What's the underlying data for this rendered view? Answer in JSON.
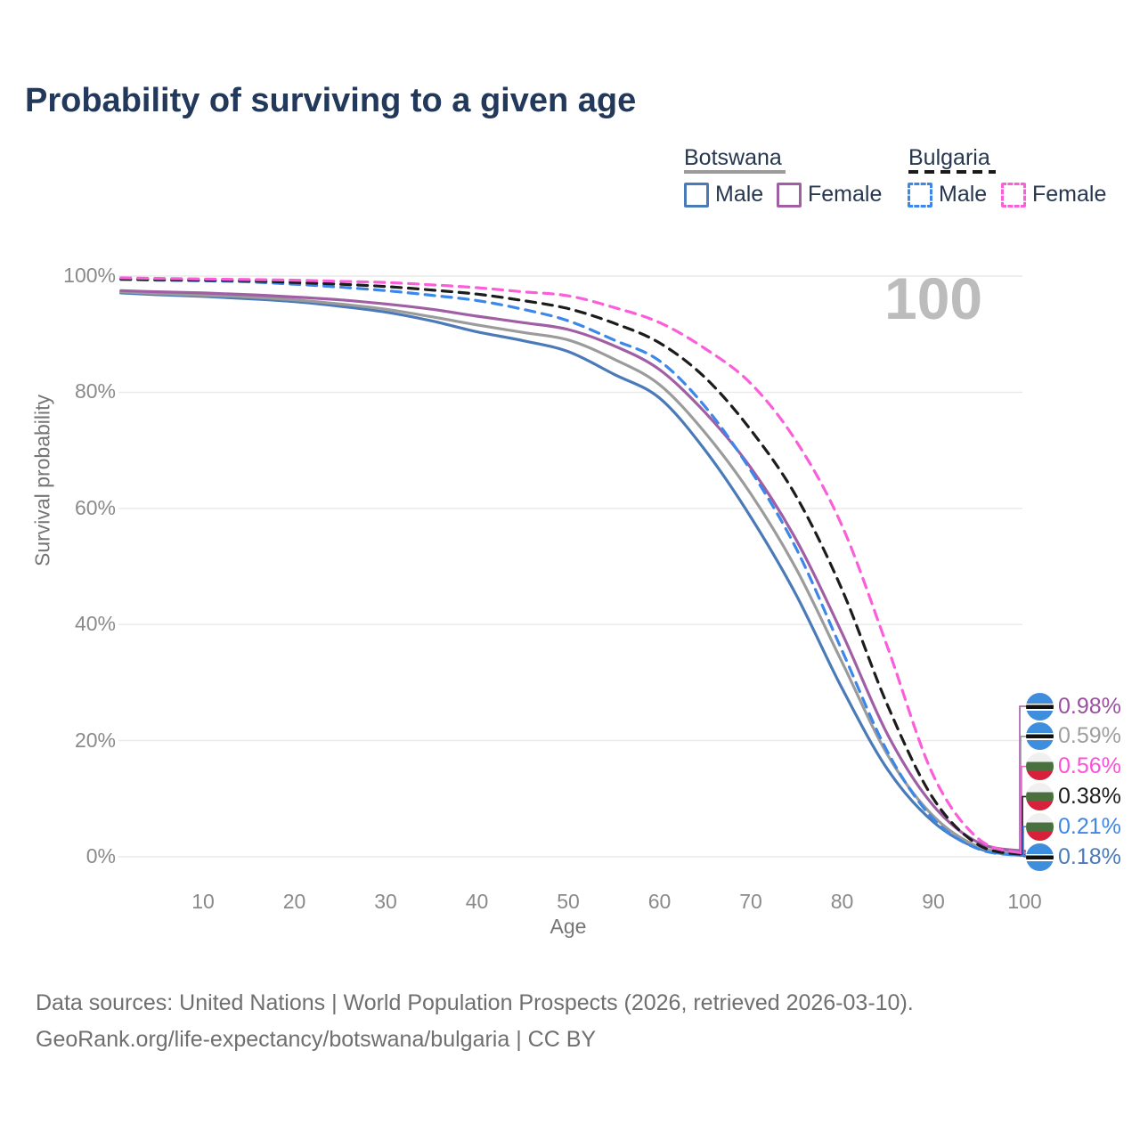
{
  "title": "Probability of surviving to a given age",
  "watermark": "100",
  "legend": {
    "botswana": {
      "title": "Botswana",
      "male_label": "Male",
      "female_label": "Female"
    },
    "bulgaria": {
      "title": "Bulgaria",
      "male_label": "Male",
      "female_label": "Female"
    }
  },
  "axes": {
    "xlabel": "Age",
    "ylabel": "Survival probability",
    "xticks": [
      {
        "value": 10,
        "label": "10"
      },
      {
        "value": 20,
        "label": "20"
      },
      {
        "value": 30,
        "label": "30"
      },
      {
        "value": 40,
        "label": "40"
      },
      {
        "value": 50,
        "label": "50"
      },
      {
        "value": 60,
        "label": "60"
      },
      {
        "value": 70,
        "label": "70"
      },
      {
        "value": 80,
        "label": "80"
      },
      {
        "value": 90,
        "label": "90"
      },
      {
        "value": 100,
        "label": "100"
      }
    ],
    "yticks": [
      {
        "value": 0,
        "label": "0%"
      },
      {
        "value": 20,
        "label": "20%"
      },
      {
        "value": 40,
        "label": "40%"
      },
      {
        "value": 60,
        "label": "60%"
      },
      {
        "value": 80,
        "label": "80%"
      },
      {
        "value": 100,
        "label": "100%"
      }
    ]
  },
  "chart_data": {
    "type": "line",
    "xlabel": "Age",
    "ylabel": "Survival probability",
    "xlim": [
      0,
      100
    ],
    "ylim": [
      0,
      100
    ],
    "grid": "horizontal",
    "x": [
      1,
      5,
      10,
      15,
      20,
      25,
      30,
      35,
      40,
      45,
      50,
      55,
      60,
      65,
      70,
      75,
      80,
      85,
      90,
      95,
      100
    ],
    "series": [
      {
        "key": "botswana-male",
        "name": "Botswana Male",
        "color": "#4a7ab8",
        "dash": "solid",
        "values": [
          97.1,
          96.8,
          96.5,
          96.1,
          95.6,
          94.8,
          93.8,
          92.3,
          90.4,
          88.9,
          87.0,
          83.1,
          79.0,
          70.0,
          58.5,
          45.0,
          29.0,
          15.0,
          6.0,
          1.4,
          0.18
        ]
      },
      {
        "key": "botswana-both",
        "name": "Botswana",
        "color": "#9b9b9b",
        "dash": "solid",
        "values": [
          97.3,
          97.0,
          96.7,
          96.4,
          95.9,
          95.2,
          94.3,
          93.0,
          91.6,
          90.3,
          89.0,
          85.7,
          81.3,
          73.0,
          62.5,
          49.5,
          33.5,
          17.5,
          7.0,
          1.7,
          0.59
        ]
      },
      {
        "key": "botswana-female",
        "name": "Botswana Female",
        "color": "#a05fa5",
        "dash": "solid",
        "values": [
          97.5,
          97.3,
          97.1,
          96.8,
          96.4,
          95.9,
          95.2,
          94.3,
          93.1,
          92.0,
          90.8,
          88.0,
          83.9,
          76.5,
          67.0,
          54.5,
          38.5,
          21.0,
          8.8,
          2.4,
          0.98
        ]
      },
      {
        "key": "bulgaria-male",
        "name": "Bulgaria Male",
        "color": "#3d87e8",
        "dash": "dashed",
        "values": [
          99.4,
          99.3,
          99.2,
          99.0,
          98.6,
          98.1,
          97.5,
          96.7,
          95.8,
          94.3,
          92.3,
          89.0,
          85.4,
          77.5,
          66.5,
          53.0,
          35.5,
          18.0,
          6.5,
          1.3,
          0.21
        ]
      },
      {
        "key": "bulgaria-both",
        "name": "Bulgaria",
        "color": "#1c1c1c",
        "dash": "dashed",
        "values": [
          99.5,
          99.4,
          99.3,
          99.2,
          98.9,
          98.6,
          98.2,
          97.6,
          96.9,
          95.8,
          94.4,
          91.9,
          88.5,
          82.5,
          73.5,
          62.0,
          46.0,
          26.0,
          10.0,
          2.0,
          0.38
        ]
      },
      {
        "key": "bulgaria-female",
        "name": "Bulgaria Female",
        "color": "#fb5ed9",
        "dash": "dashed",
        "values": [
          99.7,
          99.6,
          99.5,
          99.4,
          99.3,
          99.1,
          98.9,
          98.5,
          98.0,
          97.3,
          96.6,
          94.6,
          92.0,
          87.5,
          81.5,
          71.5,
          57.0,
          36.0,
          14.0,
          3.0,
          0.56
        ]
      }
    ]
  },
  "end_labels": [
    {
      "text": "0.98%",
      "color": "#9a50a0",
      "flag": "botswana",
      "series": "botswana-female"
    },
    {
      "text": "0.59%",
      "color": "#9e9e9e",
      "flag": "botswana",
      "series": "botswana-both"
    },
    {
      "text": "0.56%",
      "color": "#ff4fd8",
      "flag": "bulgaria",
      "series": "bulgaria-female"
    },
    {
      "text": "0.38%",
      "color": "#1c1c1c",
      "flag": "bulgaria",
      "series": "bulgaria-both"
    },
    {
      "text": "0.21%",
      "color": "#3d87e8",
      "flag": "bulgaria",
      "series": "bulgaria-male"
    },
    {
      "text": "0.18%",
      "color": "#4a7ab8",
      "flag": "botswana",
      "series": "botswana-male"
    }
  ],
  "footer": {
    "line1": "Data sources: United Nations | World Population Prospects (2026, retrieved 2026-03-10).",
    "line2": "GeoRank.org/life-expectancy/botswana/bulgaria | CC BY"
  }
}
